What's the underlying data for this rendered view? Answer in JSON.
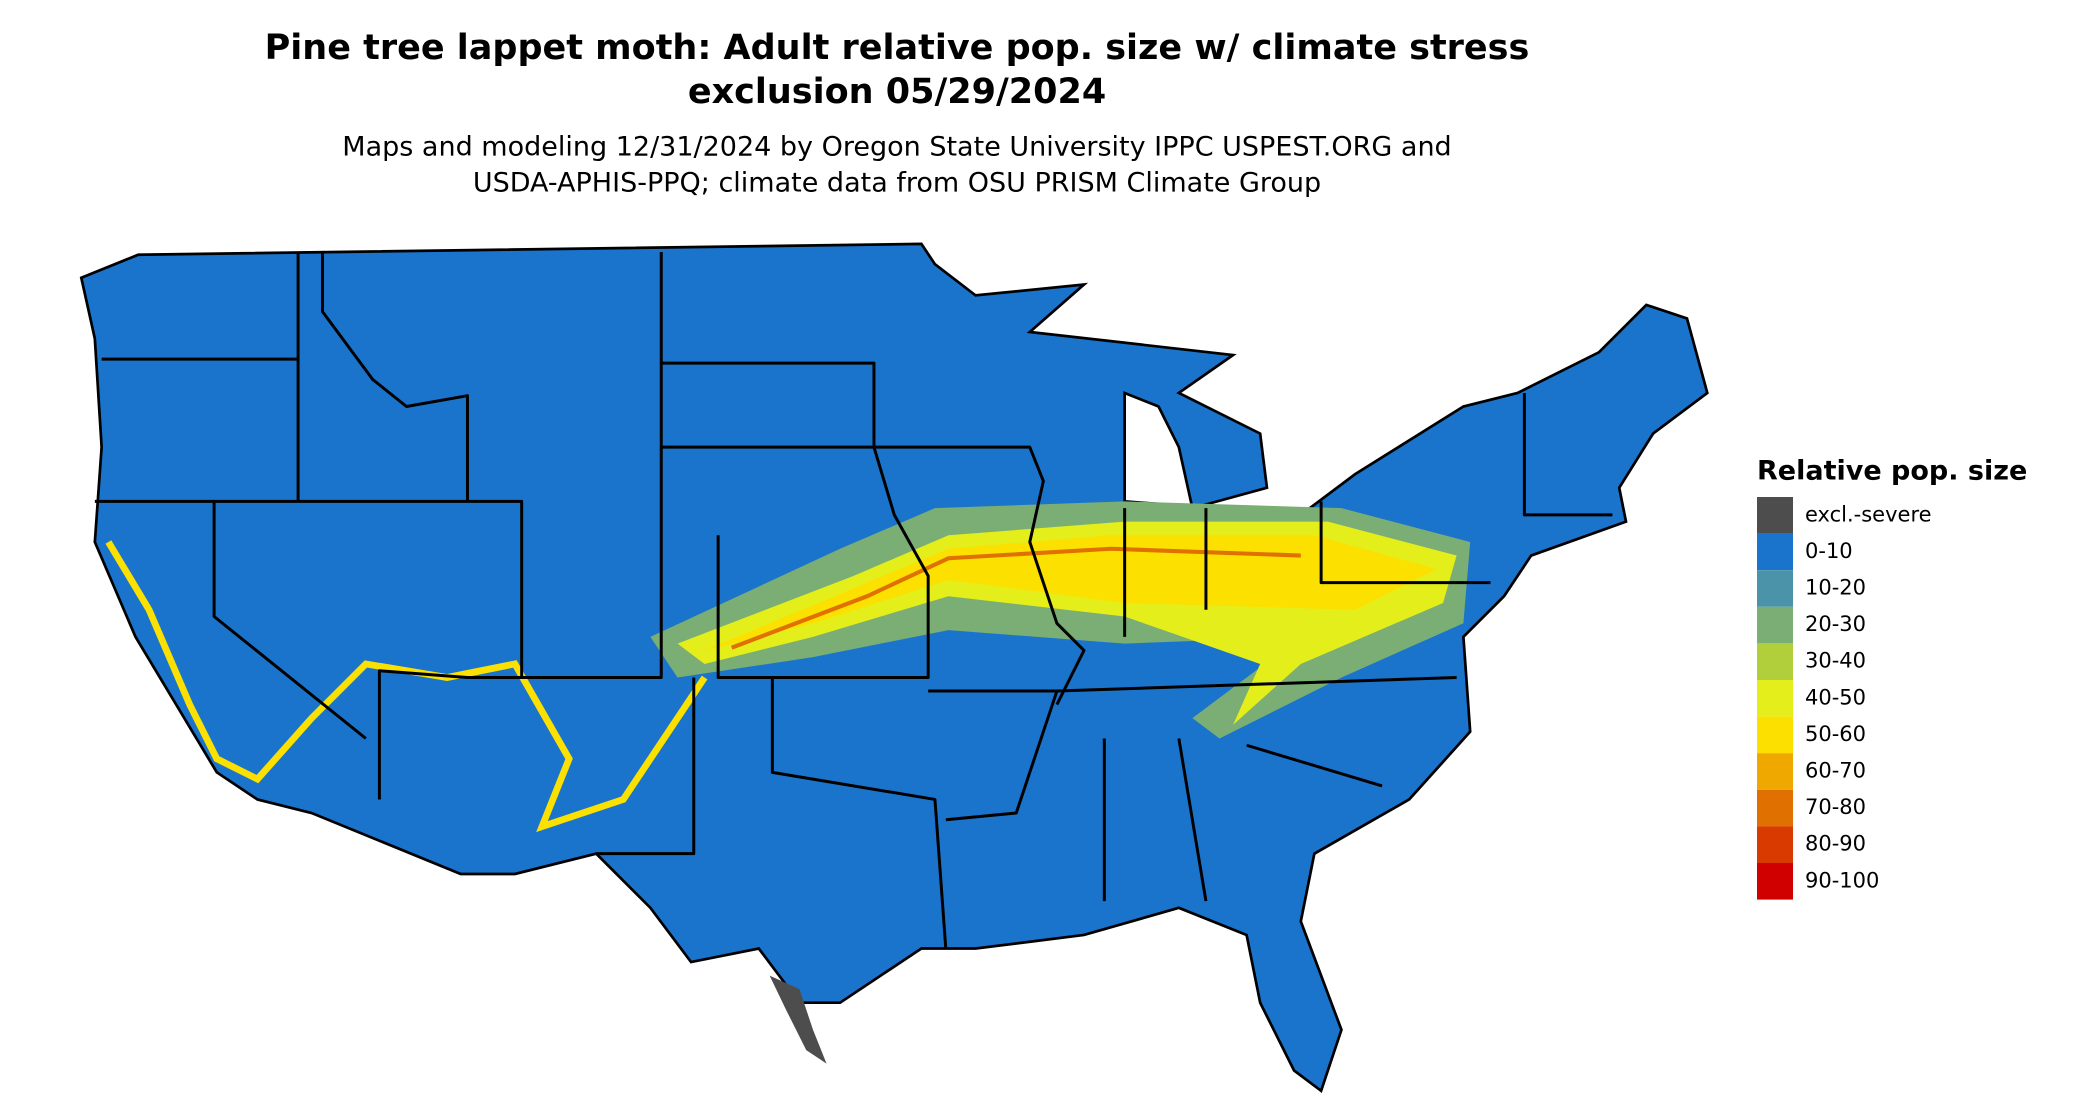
{
  "header": {
    "title_lines": [
      "Pine tree lappet moth: Adult relative pop. size w/ climate stress",
      "exclusion 05/29/2024"
    ],
    "subtitle_lines": [
      "Maps and modeling 12/31/2024 by Oregon State University IPPC USPEST.ORG and",
      "USDA-APHIS-PPQ; climate data from OSU PRISM Climate Group"
    ]
  },
  "legend": {
    "title": "Relative pop. size",
    "items": [
      {
        "label": "excl.-severe",
        "color": "#4d4d4d"
      },
      {
        "label": "0-10",
        "color": "#1b74cc"
      },
      {
        "label": "10-20",
        "color": "#4a93a8"
      },
      {
        "label": "20-30",
        "color": "#7bae74"
      },
      {
        "label": "30-40",
        "color": "#b0cf3a"
      },
      {
        "label": "40-50",
        "color": "#e4ee1a"
      },
      {
        "label": "50-60",
        "color": "#fbe000"
      },
      {
        "label": "60-70",
        "color": "#eea800"
      },
      {
        "label": "70-80",
        "color": "#e07000"
      },
      {
        "label": "80-90",
        "color": "#d83a00"
      },
      {
        "label": "90-100",
        "color": "#d10000"
      }
    ]
  }
}
